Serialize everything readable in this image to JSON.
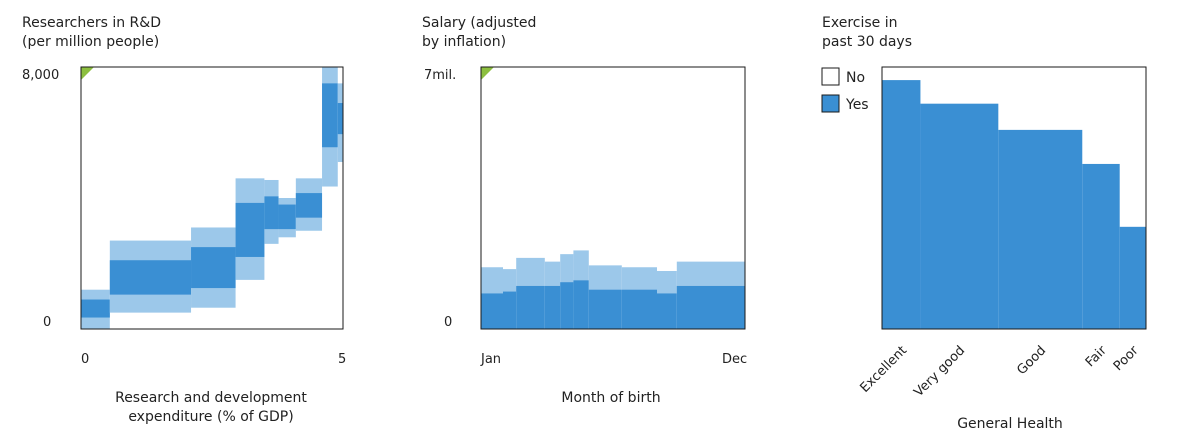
{
  "colors": {
    "dark": "#3a8fd3",
    "light": "#9cc8ea",
    "corner": "#8cbf3f",
    "frame": "#1a1a1a"
  },
  "chart_data": [
    {
      "type": "area",
      "title": [
        "Researchers in R&D",
        "(per million people)"
      ],
      "xlabel": [
        "Research and development",
        "expenditure (% of GDP)"
      ],
      "xlim": [
        0,
        5
      ],
      "ylim": [
        0,
        8000
      ],
      "x_ticks": [
        {
          "value": 0,
          "label": "0"
        },
        {
          "value": 5,
          "label": "5"
        }
      ],
      "y_ticks": [
        {
          "value": 0,
          "label": "0"
        },
        {
          "value": 8000,
          "label": "8,000"
        }
      ],
      "bins": [
        {
          "x0": 0.0,
          "x1": 0.55,
          "outer_low": 0,
          "inner_low": 350,
          "inner_high": 900,
          "outer_high": 1200
        },
        {
          "x0": 0.55,
          "x1": 2.1,
          "outer_low": 500,
          "inner_low": 1050,
          "inner_high": 2100,
          "outer_high": 2700
        },
        {
          "x0": 2.1,
          "x1": 2.95,
          "outer_low": 650,
          "inner_low": 1250,
          "inner_high": 2500,
          "outer_high": 3100
        },
        {
          "x0": 2.95,
          "x1": 3.5,
          "outer_low": 1500,
          "inner_low": 2200,
          "inner_high": 3850,
          "outer_high": 4600
        },
        {
          "x0": 3.5,
          "x1": 3.77,
          "outer_low": 2600,
          "inner_low": 3050,
          "inner_high": 4050,
          "outer_high": 4550
        },
        {
          "x0": 3.77,
          "x1": 4.1,
          "outer_low": 2800,
          "inner_low": 3050,
          "inner_high": 3800,
          "outer_high": 4000
        },
        {
          "x0": 4.1,
          "x1": 4.6,
          "outer_low": 3000,
          "inner_low": 3400,
          "inner_high": 4150,
          "outer_high": 4600
        },
        {
          "x0": 4.6,
          "x1": 4.9,
          "outer_low": 4350,
          "inner_low": 5550,
          "inner_high": 7500,
          "outer_high": 8000
        },
        {
          "x0": 4.9,
          "x1": 5.0,
          "outer_low": 5100,
          "inner_low": 5950,
          "inner_high": 6900,
          "outer_high": 7500
        }
      ]
    },
    {
      "type": "area",
      "title": [
        "Salary (adjusted",
        "by inflation)"
      ],
      "xlabel": [
        "Month of birth"
      ],
      "xlim": [
        0,
        12
      ],
      "ylim": [
        0,
        7000000
      ],
      "x_ticks": [
        {
          "value": 0,
          "label": "Jan"
        },
        {
          "value": 12,
          "label": "Dec"
        }
      ],
      "y_ticks": [
        {
          "value": 0,
          "label": "0"
        },
        {
          "value": 7000000,
          "label": "7mil."
        }
      ],
      "bins": [
        {
          "x0": 0,
          "x1": 1,
          "outer_low": 0,
          "inner_low": 0,
          "inner_high": 950000,
          "outer_high": 1650000
        },
        {
          "x0": 1,
          "x1": 1.6,
          "outer_low": 0,
          "inner_low": 0,
          "inner_high": 1000000,
          "outer_high": 1600000
        },
        {
          "x0": 1.6,
          "x1": 2.9,
          "outer_low": 0,
          "inner_low": 0,
          "inner_high": 1150000,
          "outer_high": 1900000
        },
        {
          "x0": 2.9,
          "x1": 3.6,
          "outer_low": 0,
          "inner_low": 0,
          "inner_high": 1150000,
          "outer_high": 1800000
        },
        {
          "x0": 3.6,
          "x1": 4.2,
          "outer_low": 0,
          "inner_low": 0,
          "inner_high": 1250000,
          "outer_high": 2000000
        },
        {
          "x0": 4.2,
          "x1": 4.9,
          "outer_low": 0,
          "inner_low": 0,
          "inner_high": 1300000,
          "outer_high": 2100000
        },
        {
          "x0": 4.9,
          "x1": 6.4,
          "outer_low": 0,
          "inner_low": 0,
          "inner_high": 1050000,
          "outer_high": 1700000
        },
        {
          "x0": 6.4,
          "x1": 8.0,
          "outer_low": 0,
          "inner_low": 0,
          "inner_high": 1050000,
          "outer_high": 1650000
        },
        {
          "x0": 8.0,
          "x1": 8.9,
          "outer_low": 0,
          "inner_low": 0,
          "inner_high": 950000,
          "outer_high": 1550000
        },
        {
          "x0": 8.9,
          "x1": 12,
          "outer_low": 0,
          "inner_low": 0,
          "inner_high": 1150000,
          "outer_high": 1800000
        }
      ]
    },
    {
      "type": "bar",
      "title": [
        "Exercise in",
        "past 30 days"
      ],
      "xlabel": [
        "General Health"
      ],
      "categories": [
        "Excellent",
        "Very good",
        "Good",
        "Fair",
        "Poor"
      ],
      "widths": [
        0.38,
        0.77,
        0.83,
        0.37,
        0.26
      ],
      "series": [
        {
          "name": "Yes",
          "values": [
            0.95,
            0.86,
            0.76,
            0.63,
            0.39
          ]
        },
        {
          "name": "No",
          "values": [
            0.05,
            0.14,
            0.24,
            0.37,
            0.61
          ]
        }
      ],
      "ylim": [
        0,
        1
      ],
      "legend": "top-left"
    }
  ]
}
